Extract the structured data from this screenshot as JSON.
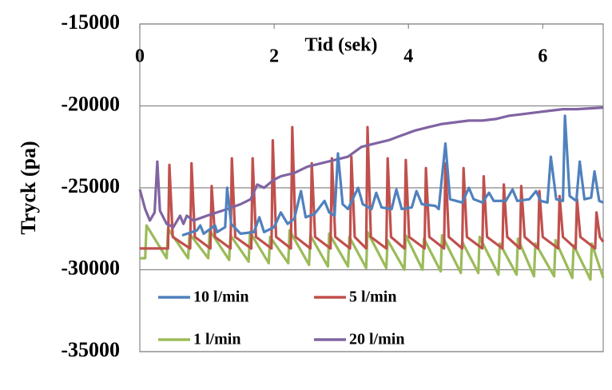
{
  "chart_data": {
    "type": "line",
    "x_label": "Tid (sek)",
    "y_label": "Tryck (pa)",
    "xlim": [
      0,
      6.9
    ],
    "xticks": [
      0,
      2,
      4,
      6
    ],
    "ylim": [
      -35000,
      -15000
    ],
    "yticks": [
      -35000,
      -30000,
      -25000,
      -20000,
      -15000
    ],
    "grid": true,
    "legend": "lower left",
    "series": [
      {
        "name": "10 l/min",
        "color": "#4f81bd",
        "x": [
          0.63,
          0.85,
          0.9,
          0.95,
          1.05,
          1.12,
          1.15,
          1.27,
          1.3,
          1.36,
          1.5,
          1.7,
          1.78,
          1.85,
          2.0,
          2.1,
          2.2,
          2.3,
          2.4,
          2.47,
          2.6,
          2.75,
          2.82,
          2.9,
          2.95,
          3.02,
          3.1,
          3.25,
          3.32,
          3.45,
          3.52,
          3.6,
          3.75,
          3.82,
          3.9,
          4.05,
          4.12,
          4.2,
          4.4,
          4.45,
          4.55,
          4.62,
          4.8,
          4.9,
          4.97,
          5.1,
          5.2,
          5.27,
          5.45,
          5.55,
          5.62,
          5.8,
          5.9,
          5.97,
          6.07,
          6.12,
          6.2,
          6.3,
          6.33,
          6.4,
          6.5,
          6.55,
          6.62,
          6.72,
          6.77,
          6.84,
          6.9
        ],
        "values": [
          -27900,
          -27600,
          -27300,
          -27800,
          -27500,
          -27300,
          -27700,
          -27400,
          -25000,
          -27200,
          -27800,
          -27700,
          -26800,
          -27700,
          -27400,
          -26500,
          -27200,
          -26900,
          -25200,
          -26800,
          -26600,
          -25800,
          -26500,
          -26700,
          -22900,
          -26000,
          -26300,
          -25000,
          -26000,
          -26300,
          -25300,
          -26200,
          -26300,
          -25100,
          -26300,
          -26200,
          -25200,
          -26000,
          -26100,
          -26300,
          -22300,
          -25700,
          -25900,
          -25000,
          -25700,
          -25900,
          -25300,
          -25800,
          -25800,
          -25100,
          -25800,
          -25700,
          -25200,
          -25800,
          -25900,
          -23100,
          -25700,
          -25800,
          -20600,
          -25500,
          -25800,
          -23400,
          -25700,
          -25600,
          -24000,
          -25800,
          -25900
        ]
      },
      {
        "name": "5 l/min",
        "color": "#c0504d",
        "x": [
          0,
          0.42,
          0.44,
          0.49,
          0.75,
          0.77,
          0.82,
          1.05,
          1.07,
          1.12,
          1.35,
          1.37,
          1.42,
          1.66,
          1.68,
          1.73,
          1.96,
          1.98,
          2.03,
          2.25,
          2.27,
          2.32,
          2.54,
          2.56,
          2.61,
          2.84,
          2.86,
          2.91,
          3.13,
          3.15,
          3.2,
          3.37,
          3.39,
          3.44,
          3.67,
          3.69,
          3.74,
          3.94,
          3.96,
          4.01,
          4.24,
          4.26,
          4.31,
          4.53,
          4.55,
          4.6,
          4.8,
          4.82,
          4.87,
          5.1,
          5.12,
          5.17,
          5.4,
          5.42,
          5.47,
          5.66,
          5.68,
          5.73,
          5.93,
          5.95,
          6.0,
          6.23,
          6.25,
          6.3,
          6.49,
          6.51,
          6.56,
          6.78,
          6.8,
          6.85,
          6.9
        ],
        "values": [
          -28700,
          -28700,
          -23600,
          -28000,
          -28700,
          -23500,
          -28000,
          -28700,
          -24900,
          -28000,
          -28700,
          -23200,
          -28000,
          -28700,
          -23200,
          -28000,
          -28700,
          -22100,
          -28000,
          -28700,
          -21300,
          -28000,
          -28700,
          -23500,
          -28000,
          -28700,
          -23200,
          -28000,
          -28700,
          -23100,
          -28000,
          -28700,
          -21300,
          -28000,
          -28700,
          -23200,
          -28000,
          -28700,
          -23300,
          -28000,
          -28700,
          -23800,
          -28000,
          -28700,
          -23500,
          -28000,
          -28700,
          -23800,
          -28000,
          -28700,
          -24300,
          -28000,
          -28700,
          -24800,
          -28000,
          -28700,
          -24900,
          -28000,
          -28700,
          -25200,
          -28000,
          -28700,
          -25500,
          -28000,
          -28700,
          -25700,
          -28000,
          -28700,
          -26500,
          -28000,
          -28300
        ]
      },
      {
        "name": "1 l/min",
        "color": "#9bbb59",
        "x": [
          0,
          0.08,
          0.1,
          0.4,
          0.42,
          0.72,
          0.74,
          1.02,
          1.04,
          1.33,
          1.35,
          1.62,
          1.64,
          1.92,
          1.94,
          2.21,
          2.23,
          2.52,
          2.54,
          2.8,
          2.82,
          3.1,
          3.12,
          3.37,
          3.39,
          3.67,
          3.69,
          3.94,
          3.96,
          4.21,
          4.23,
          4.48,
          4.5,
          4.78,
          4.8,
          5.04,
          5.06,
          5.34,
          5.36,
          5.61,
          5.63,
          5.87,
          5.89,
          6.17,
          6.19,
          6.44,
          6.46,
          6.71,
          6.73,
          6.9
        ],
        "values": [
          -29300,
          -29300,
          -27300,
          -29300,
          -27500,
          -29300,
          -27800,
          -29300,
          -27600,
          -29400,
          -27900,
          -29500,
          -27700,
          -29600,
          -28000,
          -29600,
          -27600,
          -29700,
          -27900,
          -29800,
          -27800,
          -29800,
          -28000,
          -29900,
          -27700,
          -29900,
          -28200,
          -30000,
          -27900,
          -30000,
          -28100,
          -30100,
          -27900,
          -30200,
          -28300,
          -30200,
          -28000,
          -30300,
          -28400,
          -30300,
          -28100,
          -30400,
          -28400,
          -30400,
          -28200,
          -30500,
          -28500,
          -30600,
          -28400,
          -30500
        ]
      },
      {
        "name": "20 l/min",
        "color": "#8064a2",
        "x": [
          0,
          0.08,
          0.15,
          0.22,
          0.26,
          0.3,
          0.4,
          0.5,
          0.6,
          0.65,
          0.7,
          0.8,
          1.0,
          1.3,
          1.5,
          1.65,
          1.75,
          1.85,
          2.0,
          2.1,
          2.3,
          2.5,
          2.7,
          2.9,
          3.1,
          3.3,
          3.5,
          3.7,
          3.9,
          4.1,
          4.3,
          4.5,
          4.7,
          4.9,
          5.1,
          5.3,
          5.5,
          5.7,
          5.9,
          6.1,
          6.3,
          6.5,
          6.9
        ],
        "values": [
          -25100,
          -26300,
          -27000,
          -26500,
          -23400,
          -26400,
          -27200,
          -27400,
          -26700,
          -27200,
          -26700,
          -27000,
          -26700,
          -26300,
          -26000,
          -25700,
          -24800,
          -25000,
          -24500,
          -24300,
          -24100,
          -23700,
          -23500,
          -23300,
          -23100,
          -22500,
          -22300,
          -22100,
          -21800,
          -21500,
          -21300,
          -21100,
          -21000,
          -20900,
          -20900,
          -20800,
          -20600,
          -20500,
          -20400,
          -20300,
          -20200,
          -20200,
          -20100
        ]
      }
    ]
  }
}
